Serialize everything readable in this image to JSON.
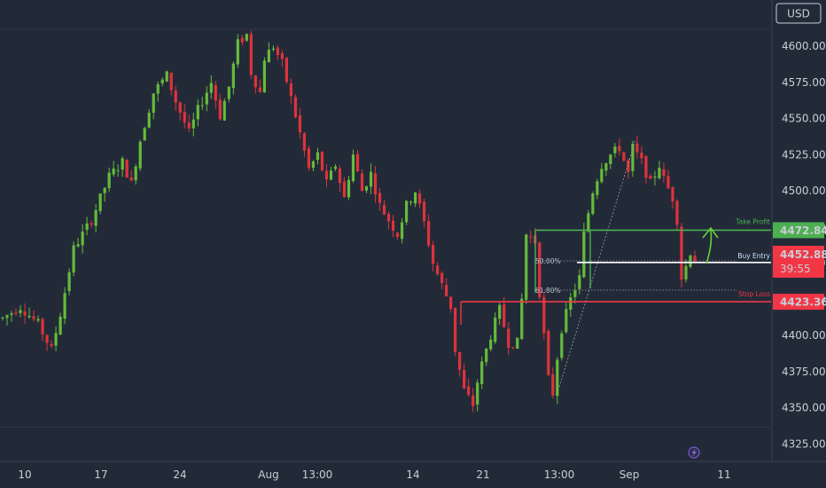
{
  "currency_button": "USD",
  "chart_data": {
    "type": "candlestick",
    "x_ticks": [
      "10",
      "17",
      "24",
      "Aug",
      "13:00",
      "14",
      "21",
      "13:00",
      "Sep",
      "11"
    ],
    "y_ticks": [
      "4600.00",
      "4575.00",
      "4550.00",
      "4525.00",
      "4500.00",
      "4475.00",
      "4450.00",
      "4425.00",
      "4400.00",
      "4375.00",
      "4350.00",
      "4325.00"
    ],
    "y_tick_values": [
      4600,
      4575,
      4550,
      4525,
      4500,
      4475,
      4450,
      4425,
      4400,
      4375,
      4350,
      4325
    ],
    "ylim": [
      4313,
      4632
    ],
    "price_labels": {
      "take_profit": {
        "value": "4472.84",
        "color": "#4caf50"
      },
      "current": {
        "value": "4452.88",
        "countdown": "39:55",
        "color": "#f23645"
      },
      "stop_loss": {
        "value": "4423.36",
        "color": "#f23645"
      }
    },
    "annotations": {
      "take_profit_label": "Take Profit",
      "buy_entry_label": "Buy Entry",
      "stop_loss_label": "Stop Loss",
      "fib_50": "50.00%",
      "fib_618": "61.80%"
    },
    "levels": {
      "take_profit": 4472.84,
      "buy_entry": 4450.5,
      "stop_loss": 4423.36,
      "range_high": 4612,
      "range_low": 4337
    },
    "path": [
      [
        0,
        4412
      ],
      [
        4,
        4420
      ],
      [
        8,
        4408
      ],
      [
        11,
        4390
      ],
      [
        13,
        4415
      ],
      [
        16,
        4460
      ],
      [
        20,
        4480
      ],
      [
        24,
        4510
      ],
      [
        27,
        4520
      ],
      [
        29,
        4505
      ],
      [
        31,
        4535
      ],
      [
        34,
        4568
      ],
      [
        37,
        4580
      ],
      [
        39,
        4562
      ],
      [
        42,
        4540
      ],
      [
        44,
        4556
      ],
      [
        47,
        4575
      ],
      [
        49,
        4552
      ],
      [
        51,
        4572
      ],
      [
        53,
        4602
      ],
      [
        55,
        4608
      ],
      [
        56,
        4582
      ],
      [
        58,
        4568
      ],
      [
        59,
        4592
      ],
      [
        61,
        4600
      ],
      [
        63,
        4588
      ],
      [
        66,
        4552
      ],
      [
        69,
        4515
      ],
      [
        71,
        4525
      ],
      [
        73,
        4505
      ],
      [
        75,
        4518
      ],
      [
        77,
        4495
      ],
      [
        79,
        4525
      ],
      [
        81,
        4500
      ],
      [
        83,
        4512
      ],
      [
        85,
        4490
      ],
      [
        87,
        4480
      ],
      [
        89,
        4470
      ],
      [
        91,
        4490
      ],
      [
        93,
        4500
      ],
      [
        95,
        4478
      ],
      [
        97,
        4450
      ],
      [
        99,
        4435
      ],
      [
        101,
        4420
      ],
      [
        102,
        4390
      ],
      [
        104,
        4362
      ],
      [
        106,
        4352
      ],
      [
        107,
        4368
      ],
      [
        108,
        4380
      ],
      [
        110,
        4400
      ],
      [
        112,
        4418
      ],
      [
        114,
        4395
      ],
      [
        116,
        4395
      ],
      [
        117,
        4425
      ],
      [
        118,
        4470
      ],
      [
        120,
        4465
      ],
      [
        121,
        4430
      ],
      [
        122,
        4400
      ],
      [
        123,
        4370
      ],
      [
        124,
        4360
      ],
      [
        125,
        4385
      ],
      [
        126,
        4405
      ],
      [
        128,
        4425
      ],
      [
        130,
        4440
      ],
      [
        131,
        4470
      ],
      [
        133,
        4500
      ],
      [
        135,
        4518
      ],
      [
        137,
        4525
      ],
      [
        139,
        4530
      ],
      [
        141,
        4512
      ],
      [
        142,
        4530
      ],
      [
        144,
        4520
      ],
      [
        146,
        4505
      ],
      [
        148,
        4518
      ],
      [
        149,
        4508
      ],
      [
        151,
        4495
      ],
      [
        152,
        4480
      ],
      [
        153,
        4440
      ],
      [
        154,
        4448
      ],
      [
        155,
        4458
      ],
      [
        156,
        4452
      ]
    ],
    "candle_count": 157
  }
}
